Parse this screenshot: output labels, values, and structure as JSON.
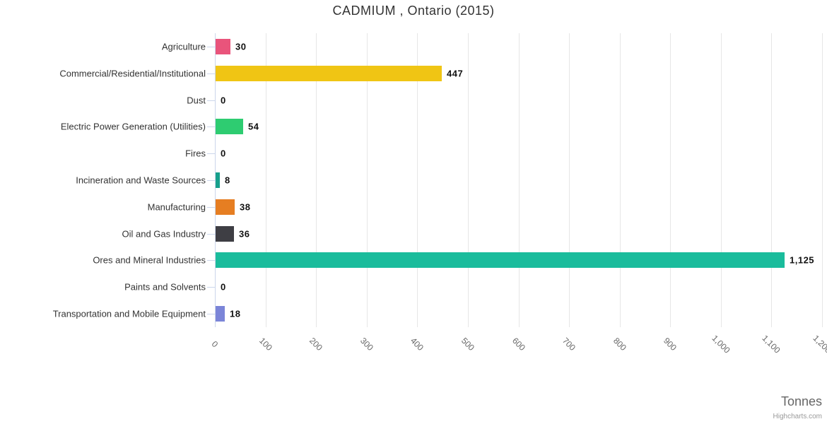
{
  "title": "CADMIUM , Ontario (2015)",
  "axis_title": "Tonnes",
  "credits": "Highcharts.com",
  "chart_data": {
    "type": "bar",
    "orientation": "horizontal",
    "title": "CADMIUM , Ontario (2015)",
    "categories": [
      "Agriculture",
      "Commercial/Residential/Institutional",
      "Dust",
      "Electric Power Generation (Utilities)",
      "Fires",
      "Incineration and Waste Sources",
      "Manufacturing",
      "Oil and Gas Industry",
      "Ores and Mineral Industries",
      "Paints and Solvents",
      "Transportation and Mobile Equipment"
    ],
    "values": [
      30,
      447,
      0,
      54,
      0,
      8,
      38,
      36,
      1125,
      0,
      18
    ],
    "value_labels": [
      "30",
      "447",
      "0",
      "54",
      "0",
      "8",
      "38",
      "36",
      "1,125",
      "0",
      "18"
    ],
    "bar_colors": [
      "#e9547b",
      "#f0c514",
      "#999999",
      "#2ecc71",
      "#999999",
      "#17a08c",
      "#e67e22",
      "#3e3e44",
      "#1abc9c",
      "#999999",
      "#7b85d8"
    ],
    "xlabel": "Tonnes",
    "xlim": [
      0,
      1200
    ],
    "xticks": [
      0,
      100,
      200,
      300,
      400,
      500,
      600,
      700,
      800,
      900,
      1000,
      1100,
      1200
    ],
    "xtick_labels": [
      "0",
      "100",
      "200",
      "300",
      "400",
      "500",
      "600",
      "700",
      "800",
      "900",
      "1,000",
      "1,100",
      "1,200"
    ],
    "grid": true,
    "legend": "none"
  },
  "theme": {
    "background": "#ffffff",
    "grid_color": "#e6e6e6",
    "axis_line_color": "#ccd6eb",
    "title_color": "#333333",
    "category_label_color": "#333333",
    "tick_label_color": "#666666",
    "data_label_color": "#111111",
    "axis_title_color": "#666666",
    "credits_color": "#999999"
  }
}
